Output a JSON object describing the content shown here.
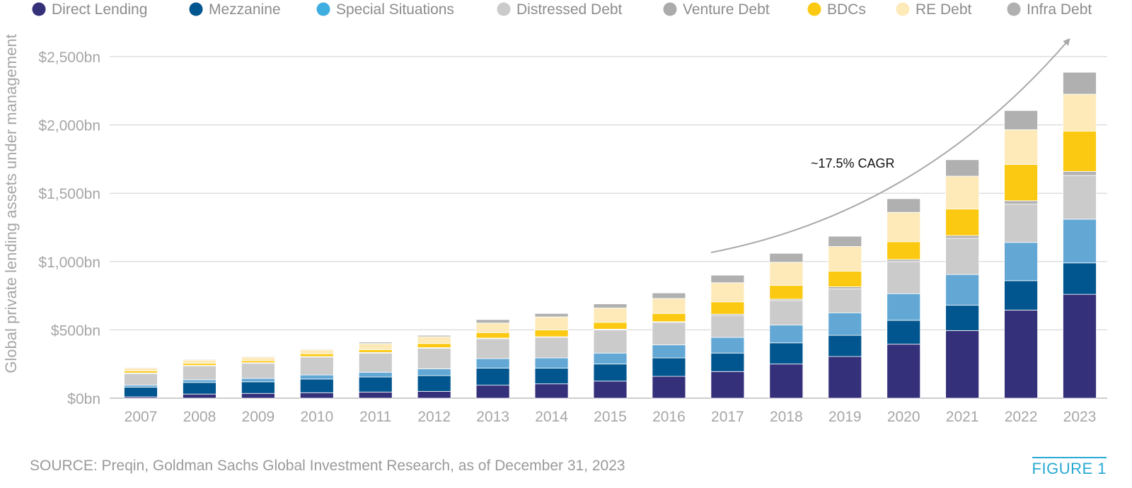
{
  "chart_data": {
    "type": "bar",
    "stacked": true,
    "ylabel": "Global private lending assets under management",
    "xlabel": "",
    "ylim": [
      0,
      2500
    ],
    "yticks": [
      0,
      500,
      1000,
      1500,
      2000,
      2500
    ],
    "ytick_labels": [
      "$0bn",
      "$500bn",
      "$1,000bn",
      "$1,500bn",
      "$2,000bn",
      "$2,500bn"
    ],
    "grid": true,
    "legend_position": "top",
    "categories": [
      "2007",
      "2008",
      "2009",
      "2010",
      "2011",
      "2012",
      "2013",
      "2014",
      "2015",
      "2016",
      "2017",
      "2018",
      "2019",
      "2020",
      "2021",
      "2022",
      "2023"
    ],
    "series": [
      {
        "name": "Direct Lending",
        "color": "#35307a",
        "values": [
          10,
          30,
          35,
          40,
          45,
          50,
          95,
          105,
          125,
          160,
          195,
          250,
          305,
          395,
          495,
          645,
          760
        ]
      },
      {
        "name": "Mezzanine",
        "color": "#02568f",
        "values": [
          70,
          85,
          85,
          100,
          110,
          115,
          125,
          115,
          125,
          135,
          135,
          155,
          155,
          175,
          185,
          215,
          230
        ]
      },
      {
        "name": "Special Situations",
        "color": "#63a8d5",
        "values": [
          15,
          20,
          25,
          30,
          35,
          50,
          70,
          75,
          80,
          95,
          115,
          130,
          165,
          195,
          225,
          280,
          320
        ]
      },
      {
        "name": "Distressed Debt",
        "color": "#cbcbcb",
        "values": [
          85,
          100,
          110,
          130,
          140,
          150,
          145,
          150,
          170,
          165,
          160,
          180,
          175,
          235,
          265,
          280,
          320
        ]
      },
      {
        "name": "Venture Debt",
        "color": "#b3b3b3",
        "values": [
          5,
          5,
          5,
          5,
          5,
          5,
          5,
          5,
          5,
          5,
          10,
          10,
          15,
          15,
          20,
          25,
          30
        ]
      },
      {
        "name": "BDCs",
        "color": "#fcc912",
        "values": [
          15,
          15,
          15,
          20,
          20,
          30,
          40,
          50,
          50,
          60,
          90,
          100,
          115,
          130,
          195,
          265,
          295
        ]
      },
      {
        "name": "RE Debt",
        "color": "#fdeab8",
        "values": [
          20,
          25,
          25,
          30,
          45,
          50,
          70,
          95,
          105,
          110,
          140,
          170,
          180,
          215,
          240,
          255,
          270
        ]
      },
      {
        "name": "Infra Debt",
        "color": "#b0b0b0",
        "values": [
          5,
          5,
          5,
          5,
          10,
          10,
          25,
          25,
          30,
          40,
          55,
          65,
          75,
          100,
          120,
          140,
          160
        ]
      }
    ],
    "legend_colors": [
      "#35307a",
      "#02568f",
      "#3eaee0",
      "#cbcbcb",
      "#ababab",
      "#fcc912",
      "#fdeab8",
      "#b0b0b0"
    ],
    "annotations": [
      {
        "text": "~17.5% CAGR",
        "type": "arrow",
        "from_year": "2017",
        "to_year": "2023"
      }
    ]
  },
  "footer": {
    "source": "SOURCE: Preqin, Goldman Sachs Global Investment Research, as of December 31, 2023",
    "figure_label": "FIGURE 1"
  }
}
